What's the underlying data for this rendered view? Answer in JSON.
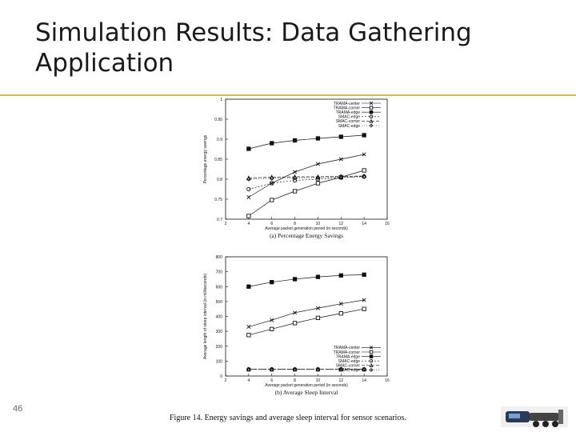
{
  "slide": {
    "title": "Simulation Results: Data Gathering Application",
    "page_number": "46",
    "figure_caption": "Figure 14. Energy savings and average sleep interval for sensor scenarios.",
    "accent_color": "#d6b84e"
  },
  "chart_data": [
    {
      "type": "line",
      "subtitle": "(a) Percentage Energy Savings",
      "xlabel": "Average packet generation period (in seconds)",
      "ylabel": "Percentage energy savings",
      "x": [
        4,
        6,
        8,
        10,
        12,
        14
      ],
      "xlim": [
        2,
        16
      ],
      "xticks": [
        2,
        4,
        6,
        8,
        10,
        12,
        14,
        16
      ],
      "ylim": [
        0.7,
        1.0
      ],
      "yticks": [
        0.7,
        0.75,
        0.8,
        0.85,
        0.9,
        0.95,
        1
      ],
      "legend_position": "top-right",
      "series": [
        {
          "name": "TRAMA-center",
          "marker": "x",
          "dash": "",
          "values": [
            0.755,
            0.79,
            0.818,
            0.838,
            0.85,
            0.862
          ]
        },
        {
          "name": "TRAMA-corner",
          "marker": "square-open",
          "dash": "",
          "values": [
            0.708,
            0.748,
            0.77,
            0.79,
            0.805,
            0.822
          ]
        },
        {
          "name": "TRAMA-edge",
          "marker": "square-filled",
          "dash": "",
          "values": [
            0.876,
            0.89,
            0.897,
            0.902,
            0.906,
            0.91
          ]
        },
        {
          "name": "SMAC-edge",
          "marker": "circle",
          "dash": "2,2",
          "values": [
            0.775,
            0.79,
            0.797,
            0.8,
            0.804,
            0.807
          ]
        },
        {
          "name": "SMAC-corner",
          "marker": "triangle",
          "dash": "4,2",
          "values": [
            0.803,
            0.805,
            0.806,
            0.806,
            0.807,
            0.808
          ]
        },
        {
          "name": "SMAC-edge",
          "marker": "diamond",
          "dash": "1,2",
          "values": [
            0.8,
            0.802,
            0.803,
            0.804,
            0.805,
            0.806
          ]
        }
      ]
    },
    {
      "type": "line",
      "subtitle": "(b) Average Sleep Interval",
      "xlabel": "Average packet generation period (in seconds)",
      "ylabel": "Average length of sleep interval (in milliseconds)",
      "x": [
        4,
        6,
        8,
        10,
        12,
        14
      ],
      "xlim": [
        2,
        16
      ],
      "xticks": [
        2,
        4,
        6,
        8,
        10,
        12,
        14,
        16
      ],
      "ylim": [
        0,
        800
      ],
      "yticks": [
        0,
        100,
        200,
        300,
        400,
        500,
        600,
        700,
        800
      ],
      "legend_position": "bottom-right",
      "series": [
        {
          "name": "TRAMA-center",
          "marker": "x",
          "dash": "",
          "values": [
            330,
            375,
            425,
            455,
            485,
            510
          ]
        },
        {
          "name": "TRAMA-corner",
          "marker": "square-open",
          "dash": "",
          "values": [
            275,
            315,
            355,
            390,
            420,
            450
          ]
        },
        {
          "name": "TRAMA-edge",
          "marker": "square-filled",
          "dash": "",
          "values": [
            600,
            630,
            650,
            665,
            675,
            680
          ]
        },
        {
          "name": "SMAC-edge",
          "marker": "circle",
          "dash": "2,2",
          "values": [
            45,
            45,
            45,
            45,
            45,
            45
          ]
        },
        {
          "name": "SMAC-corner",
          "marker": "triangle",
          "dash": "4,2",
          "values": [
            45,
            45,
            45,
            45,
            45,
            45
          ]
        },
        {
          "name": "SMAC-edge",
          "marker": "diamond",
          "dash": "1,2",
          "values": [
            45,
            45,
            45,
            45,
            45,
            45
          ]
        }
      ]
    }
  ]
}
